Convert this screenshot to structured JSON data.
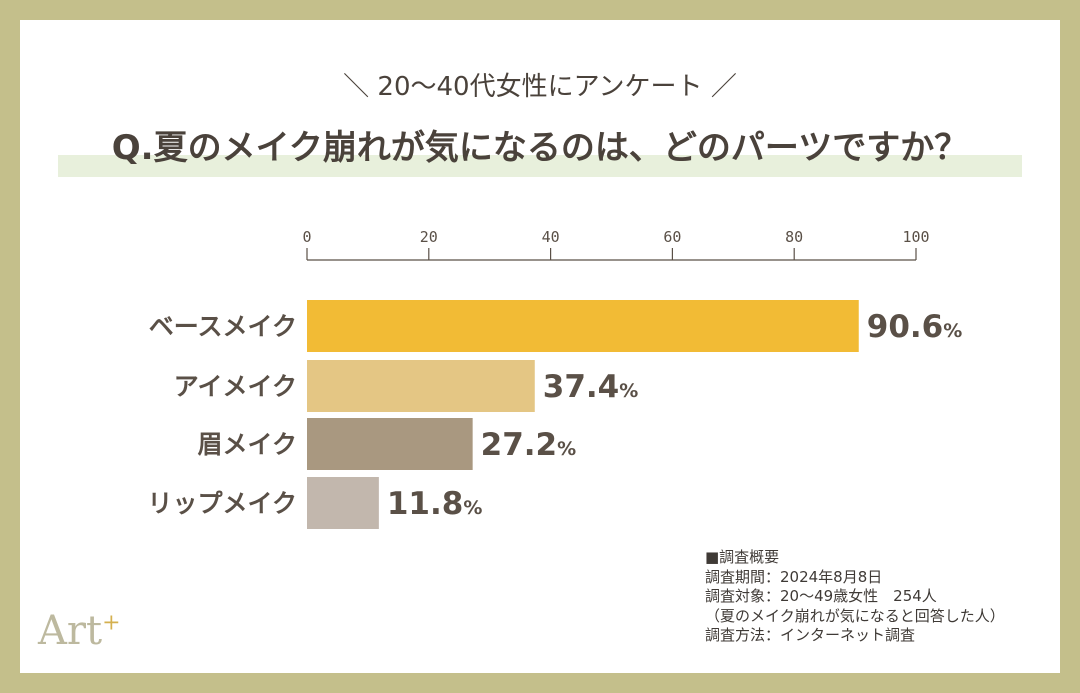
{
  "subtitle": "＼ 20〜40代女性にアンケート ／",
  "title": "Q.夏のメイク崩れが気になるのは、どのパーツですか？",
  "chart_data": {
    "type": "bar",
    "orientation": "horizontal",
    "categories": [
      "ベースメイク",
      "アイメイク",
      "眉メイク",
      "リップメイク"
    ],
    "values": [
      90.6,
      37.4,
      27.2,
      11.8
    ],
    "value_suffix": "%",
    "colors": [
      "#f2bb35",
      "#e4c684",
      "#a99880",
      "#c2b7ad"
    ],
    "xlim": [
      0,
      100
    ],
    "xticks": [
      0,
      20,
      40,
      60,
      80,
      100
    ],
    "grid": false
  },
  "survey": {
    "heading": "■調査概要",
    "lines": [
      "調査期間：2024年8月8日",
      "調査対象：20〜49歳女性　254人",
      "（夏のメイク崩れが気になると回答した人）",
      "調査方法：インターネット調査"
    ]
  },
  "logo": {
    "text": "Art",
    "sup": "+"
  }
}
